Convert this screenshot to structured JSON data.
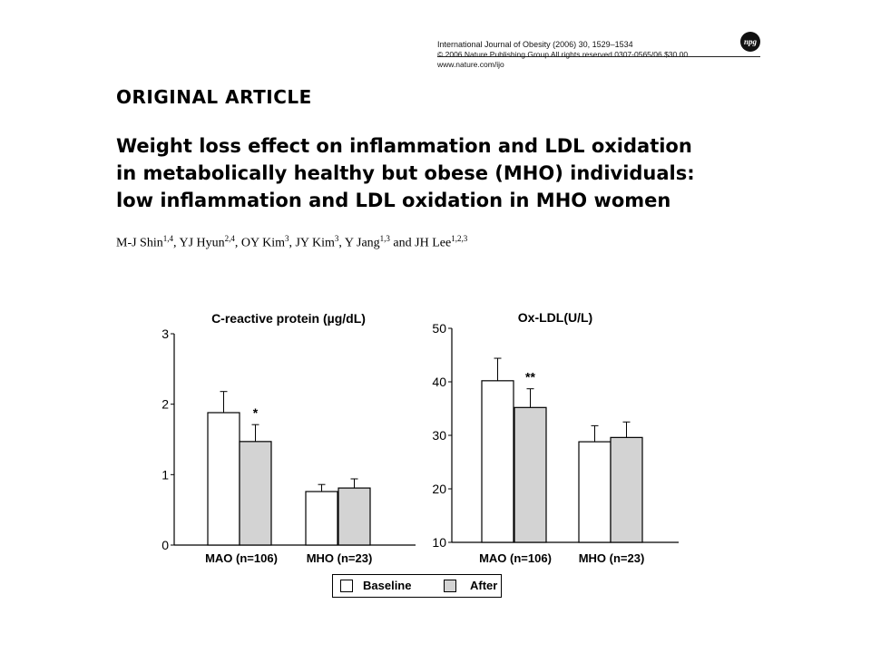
{
  "header": {
    "journal_line": "International Journal of Obesity (2006) 30, 1529–1534",
    "copyright_line": "© 2006 Nature Publishing Group   All rights reserved   0307-0565/06   $30.00",
    "url_line": "www.nature.com/ijo",
    "logo_text": "npg"
  },
  "article": {
    "section": "ORIGINAL ARTICLE",
    "title_lines": [
      "Weight loss effect on inflammation and LDL oxidation",
      "in metabolically healthy but obese (MHO) individuals:",
      "low inflammation and LDL oxidation in MHO women"
    ],
    "authors": [
      {
        "name": "M-J Shin",
        "sup": "1,4",
        "sep": ", "
      },
      {
        "name": "YJ Hyun",
        "sup": "2,4",
        "sep": ", "
      },
      {
        "name": "OY Kim",
        "sup": "3",
        "sep": ", "
      },
      {
        "name": "JY Kim",
        "sup": "3",
        "sep": ", "
      },
      {
        "name": "Y Jang",
        "sup": "1,3",
        "sep": " and "
      },
      {
        "name": "JH Lee",
        "sup": "1,2,3",
        "sep": ""
      }
    ]
  },
  "legend": {
    "baseline_label": "Baseline",
    "after_label": "After"
  },
  "colors": {
    "baseline": "#ffffff",
    "after": "#d3d3d3",
    "stroke": "#000000"
  },
  "chart_data": [
    {
      "type": "bar",
      "title": "C-reactive protein (µg/dL)",
      "categories": [
        "MAO (n=106)",
        "MHO (n=23)"
      ],
      "series": [
        {
          "name": "Baseline",
          "values": [
            1.88,
            0.76
          ],
          "errors": [
            0.3,
            0.1
          ]
        },
        {
          "name": "After",
          "values": [
            1.47,
            0.81
          ],
          "errors": [
            0.24,
            0.13
          ]
        }
      ],
      "annotations": [
        {
          "category": 0,
          "series": 1,
          "text": "*"
        }
      ],
      "ylim": [
        0,
        3
      ],
      "yticks": [
        0,
        1,
        2,
        3
      ]
    },
    {
      "type": "bar",
      "title": "Ox-LDL(U/L)",
      "categories": [
        "MAO (n=106)",
        "MHO (n=23)"
      ],
      "series": [
        {
          "name": "Baseline",
          "values": [
            40.2,
            28.8
          ],
          "errors": [
            4.2,
            3.0
          ]
        },
        {
          "name": "After",
          "values": [
            35.2,
            29.6
          ],
          "errors": [
            3.5,
            2.9
          ]
        }
      ],
      "annotations": [
        {
          "category": 0,
          "series": 1,
          "text": "**"
        }
      ],
      "ylim": [
        10,
        50
      ],
      "yticks": [
        10,
        20,
        30,
        40,
        50
      ]
    }
  ]
}
